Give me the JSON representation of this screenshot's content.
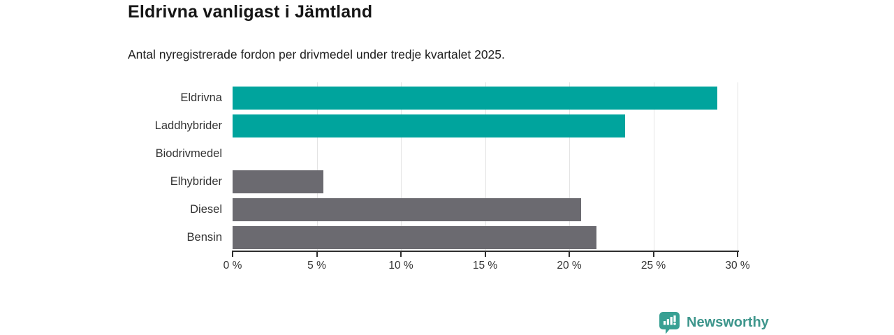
{
  "title": "Eldrivna vanligast i Jämtland",
  "subtitle": "Antal nyregistrerade fordon per drivmedel under tredje kvartalet 2025.",
  "branding": {
    "logo_text": "Newsworthy",
    "logo_icon": "bar-chart-speech-bubble-icon"
  },
  "colors": {
    "highlight_bar": "#00a49d",
    "default_bar": "#6b6a70",
    "axis": "#2e2e2e",
    "gridline": "#e4e4e4",
    "brand": "#3e968c"
  },
  "chart_data": {
    "type": "bar",
    "orientation": "horizontal",
    "title": "Eldrivna vanligast i Jämtland",
    "subtitle": "Antal nyregistrerade fordon per drivmedel under tredje kvartalet 2025.",
    "categories": [
      "Eldrivna",
      "Laddhybrider",
      "Biodrivmedel",
      "Elhybrider",
      "Diesel",
      "Bensin"
    ],
    "values": [
      28.8,
      23.3,
      0,
      5.4,
      20.7,
      21.6
    ],
    "unit": "%",
    "highlighted": [
      true,
      true,
      false,
      false,
      false,
      false
    ],
    "xlim": [
      0,
      30
    ],
    "x_tick_values": [
      0,
      5,
      10,
      15,
      20,
      25,
      30
    ],
    "x_tick_labels": [
      "0 %",
      "5 %",
      "10 %",
      "15 %",
      "20 %",
      "25 %",
      "30 %"
    ],
    "grid": true,
    "legend": "none",
    "xlabel": "",
    "ylabel": ""
  }
}
